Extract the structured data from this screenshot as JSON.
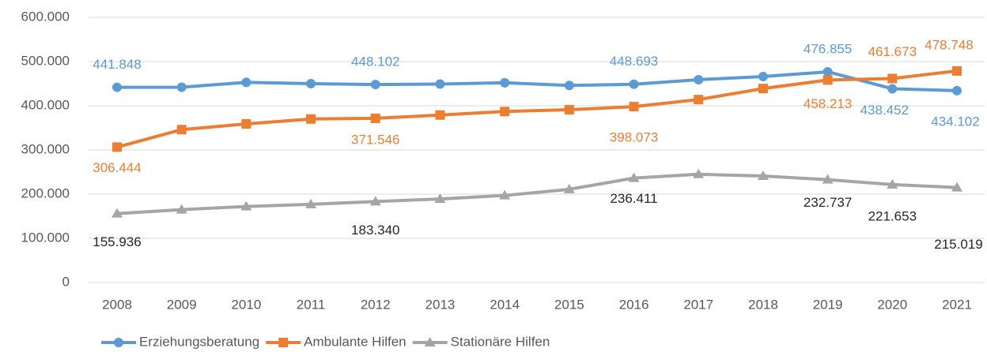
{
  "chart_data": {
    "type": "line",
    "categories": [
      "2008",
      "2009",
      "2010",
      "2011",
      "2012",
      "2013",
      "2014",
      "2015",
      "2016",
      "2017",
      "2018",
      "2019",
      "2020",
      "2021"
    ],
    "series": [
      {
        "name": "Erziehungsberatung",
        "color": "#5b9bd5",
        "marker": "circle",
        "values": [
          441848,
          442000,
          453000,
          450000,
          448102,
          449000,
          452000,
          446000,
          448693,
          459000,
          466000,
          476855,
          438452,
          434102
        ],
        "value_labels": [
          "441.848",
          null,
          null,
          null,
          "448.102",
          null,
          null,
          null,
          "448.693",
          null,
          null,
          "476.855",
          "438.452",
          "434.102"
        ]
      },
      {
        "name": "Ambulante Hilfen",
        "color": "#ed7d31",
        "marker": "square",
        "values": [
          306444,
          346000,
          359000,
          370000,
          371546,
          379000,
          387000,
          391000,
          398073,
          414000,
          439000,
          458213,
          461673,
          478748
        ],
        "value_labels": [
          "306.444",
          null,
          null,
          null,
          "371.546",
          null,
          null,
          null,
          "398.073",
          null,
          null,
          "458.213",
          "461.673",
          "478.748"
        ]
      },
      {
        "name": "Stationäre Hilfen",
        "color": "#a5a5a5",
        "marker": "triangle",
        "values": [
          155936,
          165000,
          172000,
          177000,
          183340,
          189000,
          197000,
          211000,
          236411,
          245000,
          241000,
          232737,
          221653,
          215019
        ],
        "value_labels": [
          "155.936",
          null,
          null,
          null,
          "183.340",
          null,
          null,
          null,
          "236.411",
          null,
          null,
          "232.737",
          "221.653",
          "215.019"
        ]
      }
    ],
    "ylim": [
      0,
      600000
    ],
    "yticks": [
      0,
      {
        "value": 100000,
        "label": "100.000"
      },
      {
        "value": 200000,
        "label": "200.000"
      },
      {
        "value": 300000,
        "label": "300.000"
      },
      {
        "value": 400000,
        "label": "400.000"
      },
      {
        "value": 500000,
        "label": "500.000"
      },
      {
        "value": 600000,
        "label": "600.000"
      }
    ],
    "grid": true,
    "legend": "bottom-left"
  }
}
